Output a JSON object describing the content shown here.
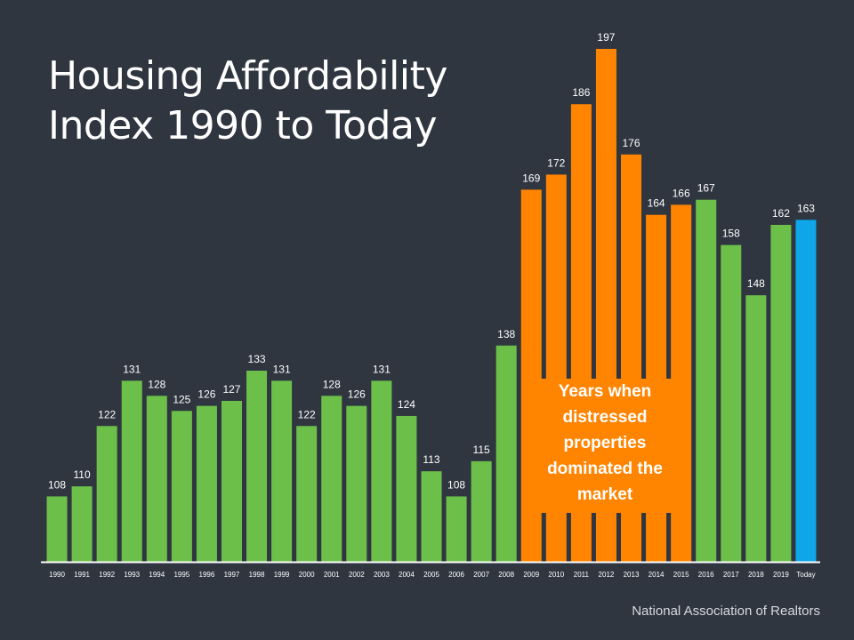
{
  "title": [
    "Housing Affordability",
    "Index 1990 to Today"
  ],
  "source": "National Association of Realtors",
  "annotation": [
    "Years when",
    "distressed",
    "properties",
    "dominated the",
    "market"
  ],
  "colors": {
    "background": "#2f3640",
    "normal": "#6cc04a",
    "distressed": "#ff8400",
    "today": "#0ea5e9",
    "axis": "#ffffff",
    "text": "#ffffff"
  },
  "chart_data": {
    "type": "bar",
    "title": "Housing Affordability Index 1990 to Today",
    "xlabel": "",
    "ylabel": "",
    "ylim": [
      95,
      200
    ],
    "categories": [
      "1990",
      "1991",
      "1992",
      "1993",
      "1994",
      "1995",
      "1996",
      "1997",
      "1998",
      "1999",
      "2000",
      "2001",
      "2002",
      "2003",
      "2004",
      "2005",
      "2006",
      "2007",
      "2008",
      "2009",
      "2010",
      "2011",
      "2012",
      "2013",
      "2014",
      "2015",
      "2016",
      "2017",
      "2018",
      "2019",
      "Today"
    ],
    "values": [
      108,
      110,
      122,
      131,
      128,
      125,
      126,
      127,
      133,
      131,
      122,
      128,
      126,
      131,
      124,
      113,
      108,
      115,
      138,
      169,
      172,
      186,
      197,
      176,
      164,
      166,
      167,
      158,
      148,
      162,
      163
    ],
    "bar_colors": [
      "normal",
      "normal",
      "normal",
      "normal",
      "normal",
      "normal",
      "normal",
      "normal",
      "normal",
      "normal",
      "normal",
      "normal",
      "normal",
      "normal",
      "normal",
      "normal",
      "normal",
      "normal",
      "normal",
      "distressed",
      "distressed",
      "distressed",
      "distressed",
      "distressed",
      "distressed",
      "distressed",
      "normal",
      "normal",
      "normal",
      "normal",
      "today"
    ],
    "data_labels": true,
    "grid": false,
    "legend": "none"
  }
}
